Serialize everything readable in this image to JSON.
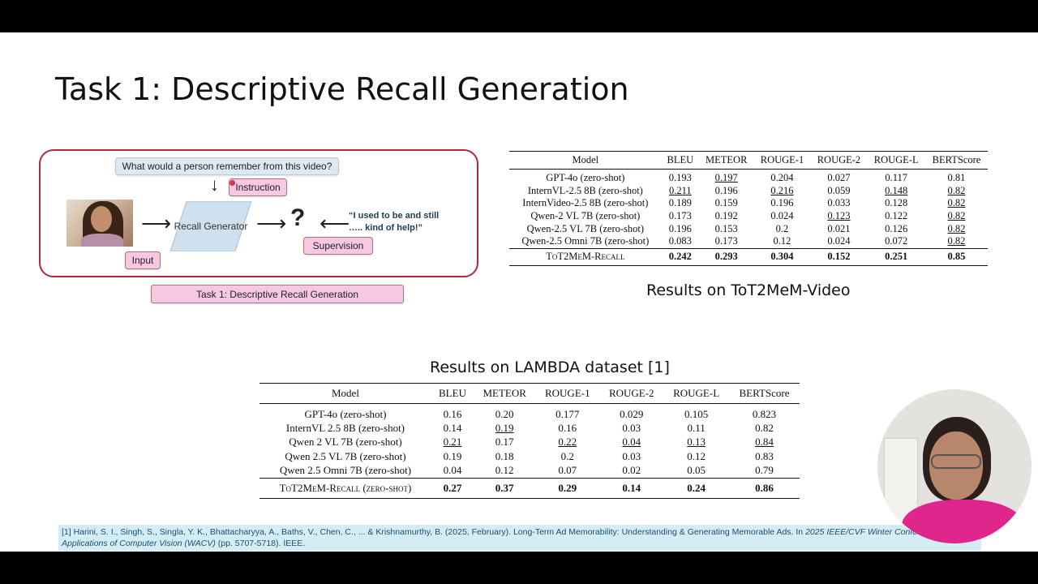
{
  "title": "Task 1: Descriptive Recall Generation",
  "diagram": {
    "question": "What would a person remember from this video?",
    "instruction_label": "Instruction",
    "generator_label": "Recall Generator",
    "quote": "“I used to be and still ….. kind of help!”",
    "supervision_label": "Supervision",
    "input_label": "Input",
    "unknown_symbol": "?",
    "arrow_right": "⟶",
    "arrow_left": "⟵",
    "arrow_down": "↓",
    "caption": "Task 1: Descriptive Recall Generation"
  },
  "table1": {
    "caption": "Results on ToT2MeM-Video",
    "headers": [
      "Model",
      "BLEU",
      "METEOR",
      "ROUGE-1",
      "ROUGE-2",
      "ROUGE-L",
      "BERTScore"
    ],
    "rows": [
      {
        "model": "GPT-4o (zero-shot)",
        "values": [
          "0.193",
          "0.197",
          "0.204",
          "0.027",
          "0.117",
          "0.81"
        ]
      },
      {
        "model": "InternVL-2.5 8B (zero-shot)",
        "values": [
          "0.211",
          "0.196",
          "0.216",
          "0.059",
          "0.148",
          "0.82"
        ]
      },
      {
        "model": "InternVideo-2.5 8B (zero-shot)",
        "values": [
          "0.189",
          "0.159",
          "0.196",
          "0.033",
          "0.128",
          "0.82"
        ]
      },
      {
        "model": "Qwen-2 VL 7B (zero-shot)",
        "values": [
          "0.173",
          "0.192",
          "0.024",
          "0.123",
          "0.122",
          "0.82"
        ]
      },
      {
        "model": "Qwen-2.5 VL 7B (zero-shot)",
        "values": [
          "0.196",
          "0.153",
          "0.2",
          "0.021",
          "0.126",
          "0.82"
        ]
      },
      {
        "model": "Qwen-2.5 Omni 7B (zero-shot)",
        "values": [
          "0.083",
          "0.173",
          "0.12",
          "0.024",
          "0.072",
          "0.82"
        ]
      }
    ],
    "footer": {
      "model": "ToT2MeM-Recall",
      "values": [
        "0.242",
        "0.293",
        "0.304",
        "0.152",
        "0.251",
        "0.85"
      ]
    }
  },
  "table2": {
    "caption": "Results on LAMBDA dataset [1]",
    "headers": [
      "Model",
      "BLEU",
      "METEOR",
      "ROUGE-1",
      "ROUGE-2",
      "ROUGE-L",
      "BERTScore"
    ],
    "rows": [
      {
        "model": "GPT-4o (zero-shot)",
        "values": [
          "0.16",
          "0.20",
          "0.177",
          "0.029",
          "0.105",
          "0.823"
        ]
      },
      {
        "model": "InternVL 2.5 8B (zero-shot)",
        "values": [
          "0.14",
          "0.19",
          "0.16",
          "0.03",
          "0.11",
          "0.82"
        ]
      },
      {
        "model": "Qwen 2 VL 7B (zero-shot)",
        "values": [
          "0.21",
          "0.17",
          "0.22",
          "0.04",
          "0.13",
          "0.84"
        ]
      },
      {
        "model": "Qwen 2.5 VL 7B (zero-shot)",
        "values": [
          "0.19",
          "0.18",
          "0.2",
          "0.03",
          "0.12",
          "0.83"
        ]
      },
      {
        "model": "Qwen 2.5 Omni 7B (zero-shot)",
        "values": [
          "0.04",
          "0.12",
          "0.07",
          "0.02",
          "0.05",
          "0.79"
        ]
      }
    ],
    "footer": {
      "model": "ToT2MeM-Recall (zero-shot)",
      "values": [
        "0.27",
        "0.37",
        "0.29",
        "0.14",
        "0.24",
        "0.86"
      ]
    }
  },
  "citation": {
    "text": "[1] Harini, S. I., Singh, S., Singla, Y. K., Bhattacharyya, A., Baths, V., Chen, C., ... & Krishnamurthy, B. (2025, February). Long-Term Ad Memorability: Understanding & Generating Memorable Ads. In ",
    "venue": "2025 IEEE/CVF Winter Conference on Applications of Computer Vision (WACV)",
    "tail": " (pp. 5707-5718). IEEE."
  }
}
